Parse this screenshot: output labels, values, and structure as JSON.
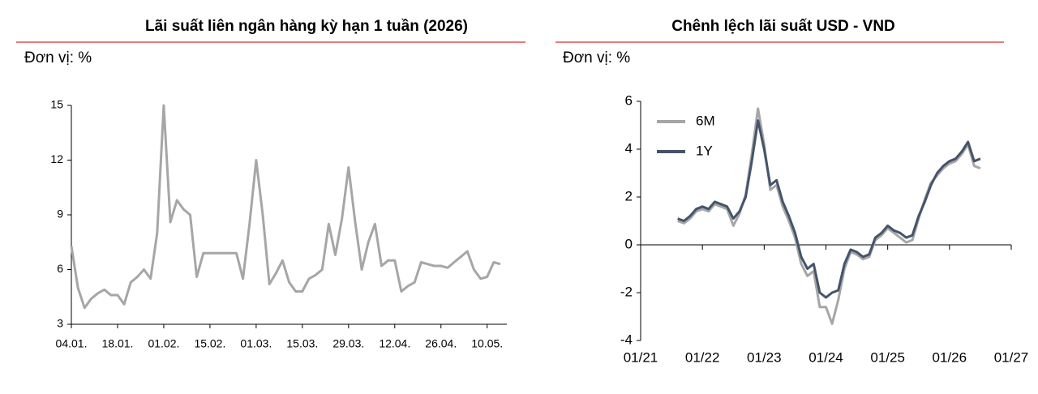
{
  "chart_data": [
    {
      "type": "line",
      "title": "Lãi suất liên ngân hàng kỳ hạn 1 tuần (2026)",
      "unit_label": "Đơn vị: %",
      "categories": [
        "04.01.",
        null,
        null,
        null,
        null,
        null,
        null,
        "18.01.",
        null,
        null,
        null,
        null,
        null,
        null,
        "01.02.",
        null,
        null,
        null,
        null,
        null,
        null,
        "15.02.",
        null,
        null,
        null,
        null,
        null,
        null,
        "01.03.",
        null,
        null,
        null,
        null,
        null,
        null,
        "15.03.",
        null,
        null,
        null,
        null,
        null,
        null,
        "29.03.",
        null,
        null,
        null,
        null,
        null,
        null,
        "12.04.",
        null,
        null,
        null,
        null,
        null,
        null,
        "26.04.",
        null,
        null,
        null,
        null,
        null,
        null,
        "10.05.",
        null,
        null
      ],
      "values": [
        7.3,
        5.0,
        3.9,
        4.4,
        4.7,
        4.9,
        4.6,
        4.6,
        4.1,
        5.3,
        5.6,
        6.0,
        5.5,
        8.0,
        15,
        8.6,
        9.8,
        9.3,
        9.0,
        5.6,
        6.9,
        6.9,
        6.9,
        6.9,
        6.9,
        6.9,
        5.5,
        8.5,
        12.0,
        9.0,
        5.2,
        5.8,
        6.5,
        5.3,
        4.8,
        4.8,
        5.5,
        5.7,
        6.0,
        8.5,
        6.8,
        8.8,
        11.6,
        8.6,
        6.0,
        7.5,
        8.5,
        6.2,
        6.5,
        6.5,
        4.8,
        5.1,
        5.3,
        6.4,
        6.3,
        6.2,
        6.2,
        6.1,
        6.4,
        6.7,
        7.0,
        6.0,
        5.5,
        5.6,
        6.4,
        6.3
      ],
      "color": "#a6a6a6",
      "ylim": [
        3,
        15
      ],
      "yticks": [
        3,
        6,
        9,
        12,
        15
      ],
      "grid": false
    },
    {
      "type": "line",
      "title": "Chênh lệch lãi suất USD - VND",
      "unit_label": "Đơn vị: %",
      "x": [
        2021.6,
        2021.7,
        2021.8,
        2021.9,
        2022.0,
        2022.1,
        2022.2,
        2022.3,
        2022.4,
        2022.5,
        2022.6,
        2022.7,
        2022.8,
        2022.9,
        2023.0,
        2023.1,
        2023.2,
        2023.3,
        2023.4,
        2023.5,
        2023.6,
        2023.7,
        2023.8,
        2023.9,
        2024.0,
        2024.1,
        2024.2,
        2024.3,
        2024.4,
        2024.5,
        2024.6,
        2024.7,
        2024.8,
        2024.9,
        2025.0,
        2025.1,
        2025.2,
        2025.3,
        2025.4,
        2025.5,
        2025.6,
        2025.7,
        2025.8,
        2025.9,
        2026.0,
        2026.1,
        2026.2,
        2026.3,
        2026.4,
        2026.5
      ],
      "series": [
        {
          "name": "6M",
          "color": "#a6a6a6",
          "values": [
            1.0,
            0.9,
            1.1,
            1.4,
            1.5,
            1.4,
            1.7,
            1.6,
            1.5,
            0.8,
            1.3,
            2.1,
            3.8,
            5.7,
            4.2,
            2.3,
            2.5,
            1.6,
            1.0,
            0.3,
            -0.8,
            -1.3,
            -1.1,
            -2.6,
            -2.6,
            -3.3,
            -2.3,
            -1.0,
            -0.3,
            -0.4,
            -0.6,
            -0.5,
            0.2,
            0.4,
            0.7,
            0.5,
            0.3,
            0.1,
            0.2,
            1.1,
            1.9,
            2.6,
            2.9,
            3.2,
            3.4,
            3.5,
            3.8,
            4.2,
            3.3,
            3.2
          ]
        },
        {
          "name": "1Y",
          "color": "#44546a",
          "values": [
            1.1,
            1.0,
            1.2,
            1.5,
            1.6,
            1.5,
            1.8,
            1.7,
            1.6,
            1.1,
            1.4,
            2.0,
            3.5,
            5.2,
            4.0,
            2.5,
            2.7,
            1.8,
            1.2,
            0.5,
            -0.5,
            -1.0,
            -0.8,
            -2.0,
            -2.2,
            -2.0,
            -1.9,
            -0.8,
            -0.2,
            -0.3,
            -0.5,
            -0.4,
            0.3,
            0.5,
            0.8,
            0.6,
            0.5,
            0.3,
            0.4,
            1.2,
            1.8,
            2.5,
            3.0,
            3.3,
            3.5,
            3.6,
            3.9,
            4.3,
            3.5,
            3.6
          ]
        }
      ],
      "xlim": [
        2021,
        2027
      ],
      "xticks": [
        {
          "value": 2021,
          "label": "01/21"
        },
        {
          "value": 2022,
          "label": "01/22"
        },
        {
          "value": 2023,
          "label": "01/23"
        },
        {
          "value": 2024,
          "label": "01/24"
        },
        {
          "value": 2025,
          "label": "01/25"
        },
        {
          "value": 2026,
          "label": "01/26"
        },
        {
          "value": 2027,
          "label": "01/27"
        }
      ],
      "ylim": [
        -4,
        6
      ],
      "yticks": [
        -4,
        -2,
        0,
        2,
        4,
        6
      ],
      "xaxis_crosses": 0,
      "legend": "upper left",
      "grid": false
    }
  ]
}
